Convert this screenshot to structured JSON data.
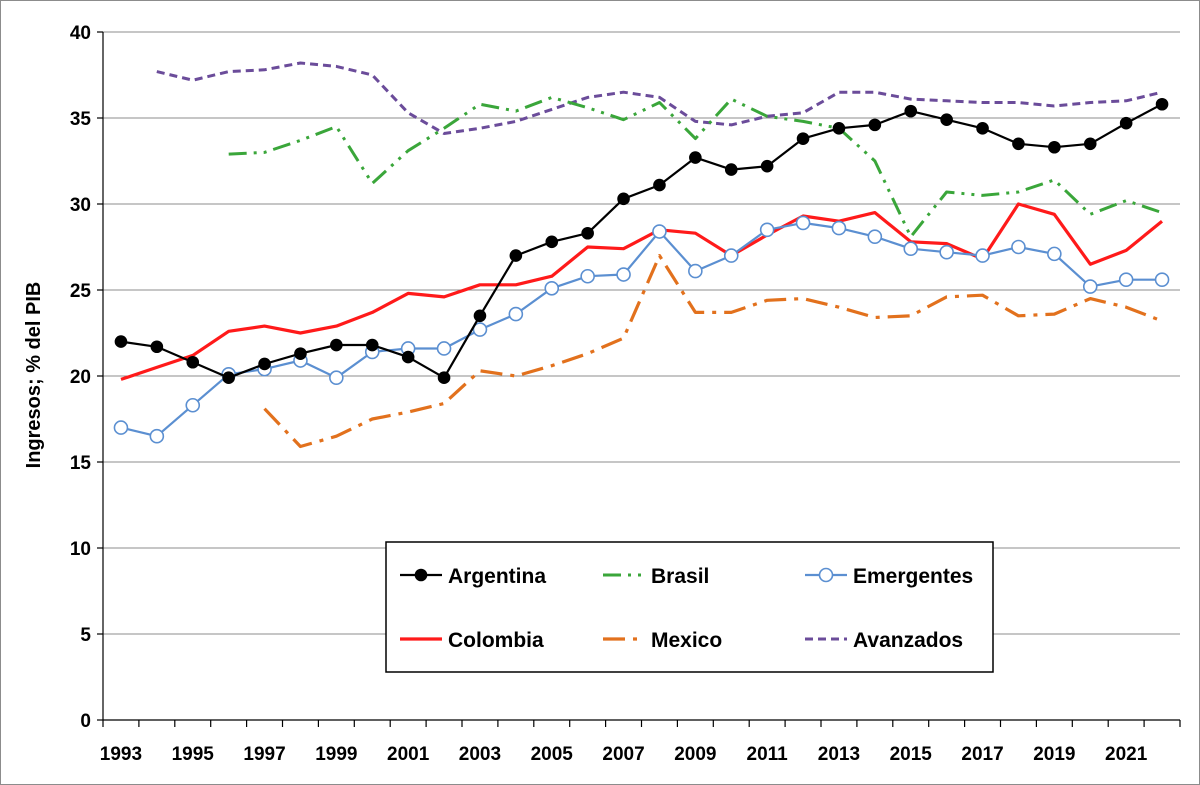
{
  "chart_data": {
    "type": "line",
    "title": "",
    "xlabel": "",
    "ylabel": "Ingresos; % del PIB",
    "xlim": [
      1993,
      2022
    ],
    "ylim": [
      0,
      40
    ],
    "yticks": [
      0,
      5,
      10,
      15,
      20,
      25,
      30,
      35,
      40
    ],
    "xtick_labels": [
      "1993",
      "1995",
      "1997",
      "1999",
      "2001",
      "2003",
      "2005",
      "2007",
      "2009",
      "2011",
      "2013",
      "2015",
      "2017",
      "2019",
      "2021"
    ],
    "grid": "horizontal",
    "legend_position": "bottom-center",
    "series": [
      {
        "name": "Argentina",
        "color": "#000000",
        "style": "solid-markers-filled",
        "x": [
          1993,
          1994,
          1995,
          1996,
          1997,
          1998,
          1999,
          2000,
          2001,
          2002,
          2003,
          2004,
          2005,
          2006,
          2007,
          2008,
          2009,
          2010,
          2011,
          2012,
          2013,
          2014,
          2015,
          2016,
          2017,
          2018,
          2019,
          2020,
          2021,
          2022
        ],
        "values": [
          22.0,
          21.7,
          20.8,
          19.9,
          20.7,
          21.3,
          21.8,
          21.8,
          21.1,
          19.9,
          23.5,
          27.0,
          27.8,
          28.3,
          30.3,
          31.1,
          32.7,
          32.0,
          32.2,
          33.8,
          34.4,
          34.6,
          35.4,
          34.9,
          34.4,
          33.5,
          33.3,
          33.5,
          34.7,
          35.8
        ]
      },
      {
        "name": "Brasil",
        "color": "#3aa63a",
        "style": "dash-dot-dot",
        "x": [
          1996,
          1997,
          1998,
          1999,
          2000,
          2001,
          2002,
          2003,
          2004,
          2005,
          2006,
          2007,
          2008,
          2009,
          2010,
          2011,
          2012,
          2013,
          2014,
          2015,
          2016,
          2017,
          2018,
          2019,
          2020,
          2021,
          2022
        ],
        "values": [
          32.9,
          33.0,
          33.7,
          34.5,
          31.2,
          33.1,
          34.4,
          35.8,
          35.4,
          36.2,
          35.6,
          34.9,
          35.9,
          33.8,
          36.1,
          35.1,
          34.8,
          34.4,
          32.5,
          28.1,
          30.7,
          30.5,
          30.7,
          31.4,
          29.4,
          30.2,
          29.5
        ]
      },
      {
        "name": "Emergentes",
        "color": "#5b8fd1",
        "style": "solid-markers-hollow",
        "x": [
          1993,
          1994,
          1995,
          1996,
          1997,
          1998,
          1999,
          2000,
          2001,
          2002,
          2003,
          2004,
          2005,
          2006,
          2007,
          2008,
          2009,
          2010,
          2011,
          2012,
          2013,
          2014,
          2015,
          2016,
          2017,
          2018,
          2019,
          2020,
          2021,
          2022
        ],
        "values": [
          17.0,
          16.5,
          18.3,
          20.1,
          20.4,
          20.9,
          19.9,
          21.4,
          21.6,
          21.6,
          22.7,
          23.6,
          25.1,
          25.8,
          25.9,
          28.4,
          26.1,
          27.0,
          28.5,
          28.9,
          28.6,
          28.1,
          27.4,
          27.2,
          27.0,
          27.5,
          27.1,
          25.2,
          25.6,
          25.6
        ]
      },
      {
        "name": "Colombia",
        "color": "#ff1a1a",
        "style": "solid-thick",
        "x": [
          1993,
          1994,
          1995,
          1996,
          1997,
          1998,
          1999,
          2000,
          2001,
          2002,
          2003,
          2004,
          2005,
          2006,
          2007,
          2008,
          2009,
          2010,
          2011,
          2012,
          2013,
          2014,
          2015,
          2016,
          2017,
          2018,
          2019,
          2020,
          2021,
          2022
        ],
        "values": [
          19.8,
          20.5,
          21.2,
          22.6,
          22.9,
          22.5,
          22.9,
          23.7,
          24.8,
          24.6,
          25.3,
          25.3,
          25.8,
          27.5,
          27.4,
          28.5,
          28.3,
          27.0,
          28.2,
          29.3,
          29.0,
          29.5,
          27.8,
          27.7,
          26.8,
          30.0,
          29.4,
          26.5,
          27.3,
          29.0
        ]
      },
      {
        "name": "Mexico",
        "color": "#e2711d",
        "style": "long-dash-dot",
        "x": [
          1997,
          1998,
          1999,
          2000,
          2001,
          2002,
          2003,
          2004,
          2005,
          2006,
          2007,
          2008,
          2009,
          2010,
          2011,
          2012,
          2013,
          2014,
          2015,
          2016,
          2017,
          2018,
          2019,
          2020,
          2021,
          2022
        ],
        "values": [
          18.1,
          15.9,
          16.5,
          17.5,
          17.9,
          18.4,
          20.3,
          20.0,
          20.6,
          21.3,
          22.2,
          27.0,
          23.7,
          23.7,
          24.4,
          24.5,
          24.0,
          23.4,
          23.5,
          24.6,
          24.7,
          23.5,
          23.6,
          24.5,
          24.0,
          23.2
        ]
      },
      {
        "name": "Avanzados",
        "color": "#6b4c9a",
        "style": "short-dash",
        "x": [
          1994,
          1995,
          1996,
          1997,
          1998,
          1999,
          2000,
          2001,
          2002,
          2003,
          2004,
          2005,
          2006,
          2007,
          2008,
          2009,
          2010,
          2011,
          2012,
          2013,
          2014,
          2015,
          2016,
          2017,
          2018,
          2019,
          2020,
          2021,
          2022
        ],
        "values": [
          37.7,
          37.2,
          37.7,
          37.8,
          38.2,
          38.0,
          37.5,
          35.3,
          34.1,
          34.4,
          34.8,
          35.5,
          36.2,
          36.5,
          36.2,
          34.8,
          34.6,
          35.1,
          35.3,
          36.5,
          36.5,
          36.1,
          36.0,
          35.9,
          35.9,
          35.7,
          35.9,
          36.0,
          36.5
        ]
      }
    ]
  }
}
